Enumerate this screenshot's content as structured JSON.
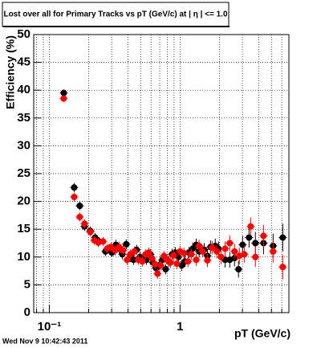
{
  "chart_data": {
    "type": "scatter",
    "title": "Lost over all for Primary Tracks vs pT (GeV/c) at |  η | <= 1.0",
    "x_label": "pT (GeV/c)",
    "y_label": "Efficiency (%)",
    "footer": "Wed Nov  9 10:42:43 2011",
    "log_x": true,
    "grid": true,
    "xlim": [
      0.076,
      6.8
    ],
    "ylim": [
      0,
      50
    ],
    "xticks": [
      {
        "value": 0.1,
        "label": "10⁻¹"
      },
      1
    ],
    "xminor": [
      0.08,
      0.09,
      0.2,
      0.3,
      0.4,
      0.5,
      0.6,
      0.7,
      0.8,
      0.9,
      2,
      3,
      4,
      5,
      6
    ],
    "yticks": [
      0,
      5,
      10,
      15,
      20,
      25,
      30,
      35,
      40,
      45,
      50
    ],
    "series": [
      {
        "color": "#000000",
        "x": [
          0.129,
          0.155,
          0.171,
          0.186,
          0.206,
          0.224,
          0.24,
          0.269,
          0.284,
          0.301,
          0.323,
          0.342,
          0.362,
          0.388,
          0.417,
          0.441,
          0.466,
          0.493,
          0.522,
          0.553,
          0.593,
          0.619,
          0.655,
          0.692,
          0.733,
          0.776,
          0.82,
          0.869,
          0.919,
          0.972,
          1.03,
          1.09,
          1.17,
          1.25,
          1.33,
          1.4,
          1.53,
          1.62,
          1.71,
          1.86,
          1.97,
          2.21,
          2.4,
          2.61,
          2.8,
          3.01,
          3.37,
          3.77,
          4.35,
          5.15,
          6.1
        ],
        "values": [
          39.5,
          22.5,
          19.2,
          15.5,
          14.7,
          13.5,
          12.8,
          11,
          11.5,
          10.8,
          12.2,
          11.5,
          10.5,
          12.3,
          10,
          9.5,
          11.3,
          10,
          9.8,
          9.5,
          10.5,
          9,
          8,
          8.5,
          9.5,
          7.8,
          9.2,
          10.5,
          10.8,
          10,
          8.5,
          9.2,
          10.8,
          11.5,
          12.2,
          11,
          11.3,
          10.2,
          11.8,
          12,
          11.5,
          9.5,
          9.5,
          9.8,
          7.8,
          12.2,
          13.5,
          12.5,
          12.5,
          12,
          13.5
        ],
        "errors": [
          0.6,
          0.8,
          0.8,
          0.8,
          0.8,
          0.8,
          0.8,
          0.8,
          0.8,
          0.8,
          0.9,
          0.9,
          0.9,
          0.9,
          0.9,
          0.9,
          0.9,
          0.9,
          0.9,
          0.9,
          0.9,
          0.9,
          0.9,
          0.9,
          0.9,
          0.9,
          1,
          1,
          1,
          1,
          1,
          1,
          1,
          1.1,
          1.1,
          1.1,
          1.2,
          1.2,
          1.2,
          1.3,
          1.3,
          1.4,
          1.4,
          1.5,
          1.5,
          1.6,
          1.8,
          2,
          2,
          2.2,
          2.5
        ]
      },
      {
        "color": "#ff0000",
        "x": [
          0.129,
          0.155,
          0.171,
          0.186,
          0.206,
          0.221,
          0.237,
          0.258,
          0.277,
          0.297,
          0.319,
          0.342,
          0.367,
          0.394,
          0.417,
          0.447,
          0.48,
          0.515,
          0.545,
          0.576,
          0.61,
          0.645,
          0.673,
          0.713,
          0.754,
          0.798,
          0.844,
          0.893,
          0.945,
          1.0,
          1.07,
          1.15,
          1.22,
          1.33,
          1.4,
          1.49,
          1.62,
          1.76,
          1.91,
          2.06,
          2.21,
          2.4,
          2.61,
          2.84,
          3.1,
          3.47,
          3.77,
          4.35,
          5.15,
          6.1
        ],
        "values": [
          38.5,
          20.8,
          17.2,
          16,
          14.5,
          13,
          12.6,
          12.8,
          11.5,
          11.8,
          11.2,
          11.8,
          11.2,
          9.5,
          10.5,
          11,
          9.5,
          9.2,
          10.5,
          10.8,
          9.8,
          8.7,
          7,
          8.5,
          10.2,
          9.5,
          9,
          10.3,
          8.8,
          11,
          10.7,
          9.2,
          10.5,
          9.5,
          12,
          11,
          9.4,
          11.7,
          11,
          10,
          11.5,
          12.5,
          11,
          10.2,
          10.5,
          15.5,
          10,
          13.8,
          11,
          8.2
        ],
        "errors": [
          0.6,
          0.8,
          0.8,
          0.8,
          0.8,
          0.8,
          0.8,
          0.8,
          0.8,
          0.8,
          0.9,
          0.9,
          0.9,
          0.9,
          0.9,
          0.9,
          0.9,
          0.9,
          0.9,
          0.9,
          0.9,
          0.9,
          0.9,
          0.9,
          0.9,
          0.9,
          1,
          1,
          1,
          1,
          1,
          1,
          1,
          1.1,
          1.1,
          1.1,
          1.2,
          1.2,
          1.2,
          1.3,
          1.3,
          1.4,
          1.4,
          1.5,
          1.5,
          1.6,
          1.8,
          2,
          2,
          2.2
        ]
      }
    ]
  }
}
